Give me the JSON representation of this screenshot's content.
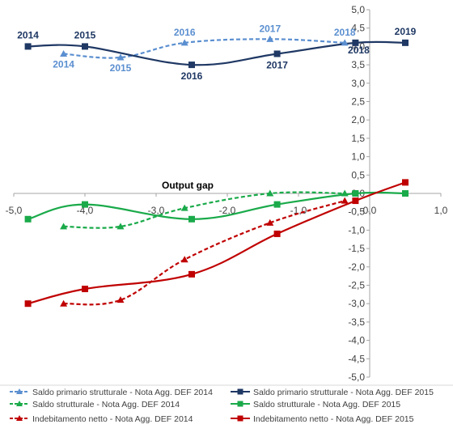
{
  "chart_data": {
    "type": "line",
    "xlabel": "Output gap",
    "ylabel": "",
    "xlim": [
      -5,
      1
    ],
    "ylim": [
      -5,
      5
    ],
    "x_ticks": [
      "-5,0",
      "-4,0",
      "-3,0",
      "-2,0",
      "-1,0",
      "0,0",
      "1,0"
    ],
    "y_ticks": [
      "5,0",
      "4,5",
      "4,0",
      "3,5",
      "3,0",
      "2,5",
      "2,0",
      "1,5",
      "1,0",
      "0,5",
      "0,0",
      "-0,5",
      "-1,0",
      "-1,5",
      "-2,0",
      "-2,5",
      "-3,0",
      "-3,5",
      "-4,0",
      "-4,5",
      "-5,0"
    ],
    "grid": false,
    "legend_position": "bottom",
    "colors": {
      "light_blue": "#5b8fd0",
      "dark_blue": "#1f3864",
      "green": "#1aaa4a",
      "red": "#c00000"
    },
    "series": [
      {
        "name": "Saldo primario strutturale - Nota Agg. DEF 2014",
        "color": "#5b8fd0",
        "dashed": true,
        "marker": "triangle",
        "points": [
          {
            "x": -4.3,
            "y": 3.8,
            "label": "2014"
          },
          {
            "x": -3.5,
            "y": 3.7,
            "label": "2015"
          },
          {
            "x": -2.6,
            "y": 4.1,
            "label": "2016"
          },
          {
            "x": -1.4,
            "y": 4.2,
            "label": "2017"
          },
          {
            "x": -0.35,
            "y": 4.1,
            "label": "2018"
          }
        ]
      },
      {
        "name": "Saldo primario strutturale - Nota Agg. DEF 2015",
        "color": "#1f3864",
        "dashed": false,
        "marker": "square",
        "points": [
          {
            "x": -4.8,
            "y": 4.0,
            "label": "2014"
          },
          {
            "x": -4.0,
            "y": 4.0,
            "label": "2015"
          },
          {
            "x": -2.5,
            "y": 3.5,
            "label": "2016"
          },
          {
            "x": -1.3,
            "y": 3.8,
            "label": "2017"
          },
          {
            "x": -0.2,
            "y": 4.1,
            "label": "2018"
          },
          {
            "x": 0.5,
            "y": 4.1,
            "label": "2019"
          }
        ]
      },
      {
        "name": "Saldo strutturale - Nota Agg. DEF 2014",
        "color": "#1aaa4a",
        "dashed": true,
        "marker": "triangle",
        "points": [
          {
            "x": -4.3,
            "y": -0.9
          },
          {
            "x": -3.5,
            "y": -0.9
          },
          {
            "x": -2.6,
            "y": -0.4
          },
          {
            "x": -1.4,
            "y": 0.0
          },
          {
            "x": -0.35,
            "y": 0.0
          }
        ]
      },
      {
        "name": "Saldo strutturale - Nota Agg. DEF 2015",
        "color": "#1aaa4a",
        "dashed": false,
        "marker": "square",
        "points": [
          {
            "x": -4.8,
            "y": -0.7
          },
          {
            "x": -4.0,
            "y": -0.3
          },
          {
            "x": -2.5,
            "y": -0.7
          },
          {
            "x": -1.3,
            "y": -0.3
          },
          {
            "x": -0.2,
            "y": 0.0
          },
          {
            "x": 0.5,
            "y": 0.0
          }
        ]
      },
      {
        "name": "Indebitamento netto - Nota Agg. DEF 2014",
        "color": "#c00000",
        "dashed": true,
        "marker": "triangle",
        "points": [
          {
            "x": -4.3,
            "y": -3.0
          },
          {
            "x": -3.5,
            "y": -2.9
          },
          {
            "x": -2.6,
            "y": -1.8
          },
          {
            "x": -1.4,
            "y": -0.8
          },
          {
            "x": -0.35,
            "y": -0.2
          }
        ]
      },
      {
        "name": "Indebitamento netto - Nota Agg. DEF 2015",
        "color": "#c00000",
        "dashed": false,
        "marker": "square",
        "points": [
          {
            "x": -4.8,
            "y": -3.0
          },
          {
            "x": -4.0,
            "y": -2.6
          },
          {
            "x": -2.5,
            "y": -2.2
          },
          {
            "x": -1.3,
            "y": -1.1
          },
          {
            "x": -0.2,
            "y": -0.2
          },
          {
            "x": 0.5,
            "y": 0.3
          }
        ]
      }
    ]
  }
}
